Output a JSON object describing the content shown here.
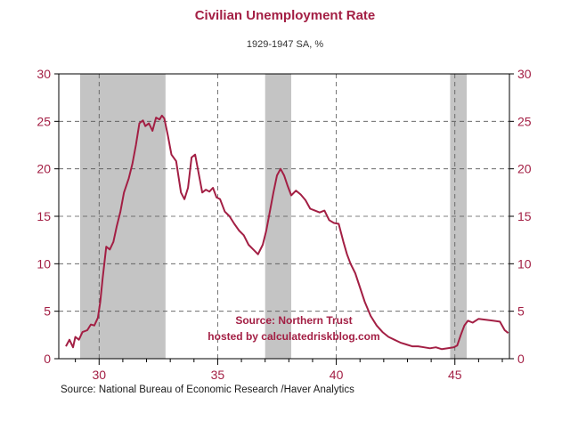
{
  "header": {
    "title": "Civilian Unemployment Rate",
    "subtitle": "1929-1947   SA, %"
  },
  "footer": {
    "source": "Source:  National Bureau of Economic Research /Haver Analytics"
  },
  "colors": {
    "line": "#a31f44",
    "axis_label": "#a31f44",
    "recession": "#c4c4c4"
  },
  "chart_data": {
    "type": "line",
    "title": "Civilian Unemployment Rate",
    "subtitle": "1929-1947   SA, %",
    "xlabel": "",
    "ylabel": "",
    "xlim": [
      28.3,
      47.3
    ],
    "ylim": [
      0,
      30
    ],
    "x_ticks": [
      30,
      35,
      40,
      45
    ],
    "x_tick_labels": [
      "30",
      "35",
      "40",
      "45"
    ],
    "y_ticks": [
      0,
      5,
      10,
      15,
      20,
      25,
      30
    ],
    "y_tick_labels": [
      "0",
      "5",
      "10",
      "15",
      "20",
      "25",
      "30"
    ],
    "y_axis_right": true,
    "grid": true,
    "recession_bands": [
      [
        29.2,
        32.8
      ],
      [
        37.0,
        38.1
      ],
      [
        44.8,
        45.5
      ]
    ],
    "annotations": [
      "Source: Northern Trust",
      "hosted by calculatedriskblog.com"
    ],
    "series": [
      {
        "x": [
          28.6,
          28.75,
          28.9,
          29.0,
          29.15,
          29.3,
          29.5,
          29.65,
          29.8,
          29.95,
          30.05,
          30.15,
          30.3,
          30.45,
          30.6,
          30.75,
          30.9,
          31.05,
          31.25,
          31.4,
          31.55,
          31.7,
          31.85,
          31.95,
          32.1,
          32.25,
          32.4,
          32.55,
          32.65,
          32.75,
          32.9,
          33.05,
          33.25,
          33.45,
          33.6,
          33.75,
          33.9,
          34.05,
          34.2,
          34.35,
          34.5,
          34.65,
          34.8,
          34.95,
          35.1,
          35.3,
          35.5,
          35.7,
          35.9,
          36.1,
          36.3,
          36.5,
          36.7,
          36.9,
          37.05,
          37.2,
          37.35,
          37.5,
          37.65,
          37.8,
          37.95,
          38.1,
          38.3,
          38.5,
          38.7,
          38.9,
          39.1,
          39.3,
          39.5,
          39.7,
          39.9,
          40.1,
          40.3,
          40.45,
          40.6,
          40.8,
          41.0,
          41.2,
          41.45,
          41.7,
          41.95,
          42.2,
          42.45,
          42.7,
          42.95,
          43.2,
          43.45,
          43.7,
          43.95,
          44.2,
          44.45,
          44.7,
          44.95,
          45.1,
          45.25,
          45.4,
          45.55,
          45.75,
          46.0,
          46.3,
          46.6,
          46.9,
          47.1,
          47.25
        ],
        "y": [
          1.3,
          2.0,
          1.2,
          2.3,
          2.0,
          2.8,
          3.0,
          3.6,
          3.5,
          4.3,
          6.0,
          8.5,
          11.8,
          11.5,
          12.3,
          14.0,
          15.5,
          17.5,
          19.0,
          20.5,
          22.5,
          24.8,
          25.1,
          24.5,
          24.8,
          24.0,
          25.4,
          25.2,
          25.6,
          25.3,
          23.5,
          21.5,
          20.8,
          17.5,
          16.8,
          18.0,
          21.2,
          21.5,
          19.5,
          17.5,
          17.8,
          17.6,
          18.0,
          17.0,
          16.8,
          15.5,
          15.0,
          14.2,
          13.5,
          13.0,
          12.0,
          11.5,
          11.0,
          12.0,
          13.5,
          15.5,
          17.5,
          19.3,
          20.0,
          19.3,
          18.2,
          17.2,
          17.7,
          17.3,
          16.7,
          15.8,
          15.6,
          15.4,
          15.6,
          14.6,
          14.3,
          14.2,
          12.3,
          11.0,
          10.0,
          9.0,
          7.5,
          6.0,
          4.5,
          3.5,
          2.8,
          2.3,
          2.0,
          1.7,
          1.5,
          1.3,
          1.3,
          1.2,
          1.1,
          1.2,
          1.0,
          1.1,
          1.2,
          1.4,
          2.5,
          3.5,
          4.0,
          3.8,
          4.2,
          4.1,
          4.0,
          3.9,
          3.0,
          2.7
        ]
      }
    ]
  }
}
